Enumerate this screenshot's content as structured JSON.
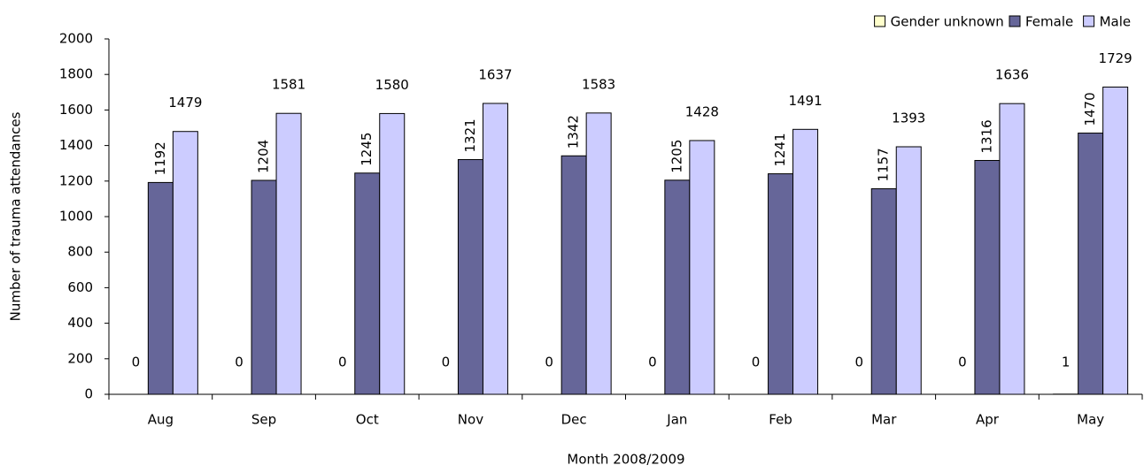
{
  "chart_data": {
    "type": "bar",
    "x_label": "Month 2008/2009",
    "y_label": "Number of trauma attendances",
    "categories": [
      "Aug",
      "Sep",
      "Oct",
      "Nov",
      "Dec",
      "Jan",
      "Feb",
      "Mar",
      "Apr",
      "May"
    ],
    "series": [
      {
        "name": "Gender unknown",
        "color": "#ffffcc",
        "values": [
          0,
          0,
          0,
          0,
          0,
          0,
          0,
          0,
          0,
          1
        ]
      },
      {
        "name": "Female",
        "color": "#666699",
        "values": [
          1192,
          1204,
          1245,
          1321,
          1342,
          1205,
          1241,
          1157,
          1316,
          1470
        ]
      },
      {
        "name": "Male",
        "color": "#ccccff",
        "values": [
          1479,
          1581,
          1580,
          1637,
          1583,
          1428,
          1491,
          1393,
          1636,
          1729
        ]
      }
    ],
    "ylim": [
      0,
      2000
    ],
    "yticks": [
      0,
      200,
      400,
      600,
      800,
      1000,
      1200,
      1400,
      1600,
      1800,
      2000
    ],
    "legend": "top-right"
  }
}
